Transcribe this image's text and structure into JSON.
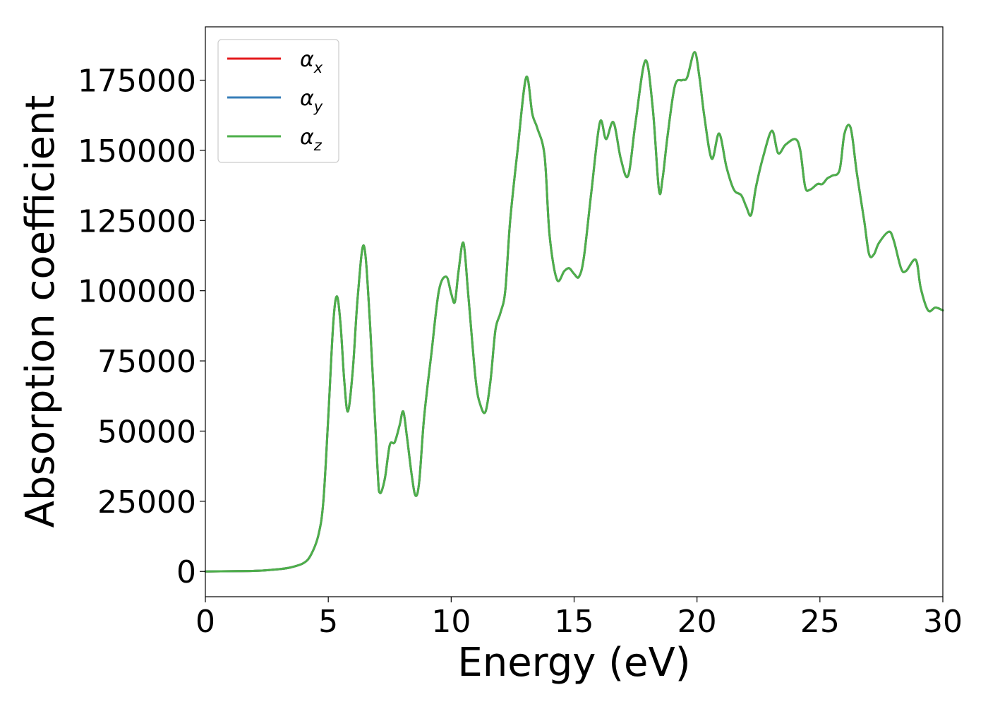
{
  "chart_data": {
    "type": "line",
    "title": "",
    "xlabel": "Energy (eV)",
    "ylabel": "Absorption coefficient",
    "xlim": [
      0,
      30
    ],
    "ylim": [
      -9000,
      194000
    ],
    "xticks": [
      0,
      5,
      10,
      15,
      20,
      25,
      30
    ],
    "yticks": [
      0,
      25000,
      50000,
      75000,
      100000,
      125000,
      150000,
      175000
    ],
    "grid": false,
    "legend_position": "top-left",
    "series": [
      {
        "name": "α_x",
        "label_main": "α",
        "label_sub": "x",
        "color": "#e41a1c",
        "x": [
          0,
          1,
          2,
          3,
          3.5,
          4,
          4.3,
          4.6,
          4.8,
          5.0,
          5.2,
          5.35,
          5.5,
          5.65,
          5.8,
          6.0,
          6.2,
          6.45,
          6.7,
          7.0,
          7.1,
          7.3,
          7.5,
          7.7,
          7.9,
          8.05,
          8.2,
          8.4,
          8.55,
          8.7,
          8.9,
          9.2,
          9.5,
          9.8,
          10.0,
          10.15,
          10.3,
          10.5,
          10.7,
          11.0,
          11.2,
          11.4,
          11.6,
          11.8,
          12.0,
          12.2,
          12.4,
          12.7,
          13.05,
          13.3,
          13.5,
          13.8,
          14.0,
          14.3,
          14.6,
          14.8,
          15.0,
          15.2,
          15.4,
          15.7,
          16.05,
          16.3,
          16.6,
          16.9,
          17.2,
          17.5,
          17.9,
          18.2,
          18.45,
          18.6,
          18.8,
          19.1,
          19.4,
          19.6,
          19.9,
          20.1,
          20.3,
          20.6,
          20.9,
          21.2,
          21.5,
          21.8,
          22.0,
          22.2,
          22.4,
          22.7,
          23.05,
          23.3,
          23.6,
          24.0,
          24.2,
          24.4,
          24.6,
          24.9,
          25.1,
          25.3,
          25.5,
          25.8,
          26.0,
          26.25,
          26.5,
          26.8,
          27.0,
          27.2,
          27.4,
          27.8,
          28.0,
          28.3,
          28.5,
          28.9,
          29.1,
          29.4,
          29.7,
          30.0
        ],
        "y": [
          0,
          100,
          200,
          800,
          1500,
          3000,
          6000,
          13000,
          25000,
          55000,
          88000,
          98000,
          88000,
          68000,
          57000,
          72000,
          98000,
          116000,
          88000,
          37000,
          28000,
          33000,
          45000,
          46000,
          52000,
          57000,
          48000,
          34000,
          27000,
          32000,
          55000,
          78000,
          100000,
          105000,
          99000,
          96000,
          107000,
          117000,
          98000,
          68000,
          59000,
          57000,
          68000,
          86000,
          92000,
          100000,
          125000,
          150000,
          176000,
          163000,
          158000,
          148000,
          120000,
          104000,
          107000,
          108000,
          106000,
          105000,
          112000,
          135000,
          160000,
          154000,
          160000,
          147000,
          141000,
          160000,
          182000,
          165000,
          136000,
          140000,
          155000,
          173000,
          175000,
          176000,
          185000,
          176000,
          162000,
          147000,
          156000,
          144000,
          136000,
          134000,
          130000,
          127000,
          137000,
          148000,
          157000,
          149000,
          152000,
          154000,
          150000,
          137000,
          136000,
          138000,
          138000,
          140000,
          141000,
          143000,
          156000,
          158000,
          142000,
          125000,
          113000,
          113000,
          117000,
          121000,
          118000,
          108000,
          107000,
          111000,
          101000,
          93000,
          94000,
          93000
        ]
      },
      {
        "name": "α_y",
        "label_main": "α",
        "label_sub": "y",
        "color": "#377eb8",
        "x": [
          0,
          1,
          2,
          3,
          3.5,
          4,
          4.3,
          4.6,
          4.8,
          5.0,
          5.2,
          5.35,
          5.5,
          5.65,
          5.8,
          6.0,
          6.2,
          6.45,
          6.7,
          7.0,
          7.1,
          7.3,
          7.5,
          7.7,
          7.9,
          8.05,
          8.2,
          8.4,
          8.55,
          8.7,
          8.9,
          9.2,
          9.5,
          9.8,
          10.0,
          10.15,
          10.3,
          10.5,
          10.7,
          11.0,
          11.2,
          11.4,
          11.6,
          11.8,
          12.0,
          12.2,
          12.4,
          12.7,
          13.05,
          13.3,
          13.5,
          13.8,
          14.0,
          14.3,
          14.6,
          14.8,
          15.0,
          15.2,
          15.4,
          15.7,
          16.05,
          16.3,
          16.6,
          16.9,
          17.2,
          17.5,
          17.9,
          18.2,
          18.45,
          18.6,
          18.8,
          19.1,
          19.4,
          19.6,
          19.9,
          20.1,
          20.3,
          20.6,
          20.9,
          21.2,
          21.5,
          21.8,
          22.0,
          22.2,
          22.4,
          22.7,
          23.05,
          23.3,
          23.6,
          24.0,
          24.2,
          24.4,
          24.6,
          24.9,
          25.1,
          25.3,
          25.5,
          25.8,
          26.0,
          26.25,
          26.5,
          26.8,
          27.0,
          27.2,
          27.4,
          27.8,
          28.0,
          28.3,
          28.5,
          28.9,
          29.1,
          29.4,
          29.7,
          30.0
        ],
        "y": [
          0,
          100,
          200,
          800,
          1500,
          3000,
          6000,
          13000,
          25000,
          55000,
          88000,
          98000,
          88000,
          68000,
          57000,
          72000,
          98000,
          116000,
          88000,
          37000,
          28000,
          33000,
          45000,
          46000,
          52000,
          57000,
          48000,
          34000,
          27000,
          32000,
          55000,
          78000,
          100000,
          105000,
          99000,
          96000,
          107000,
          117000,
          98000,
          68000,
          59000,
          57000,
          68000,
          86000,
          92000,
          100000,
          125000,
          150000,
          176000,
          163000,
          158000,
          148000,
          120000,
          104000,
          107000,
          108000,
          106000,
          105000,
          112000,
          135000,
          160000,
          154000,
          160000,
          147000,
          141000,
          160000,
          182000,
          165000,
          136000,
          140000,
          155000,
          173000,
          175000,
          176000,
          185000,
          176000,
          162000,
          147000,
          156000,
          144000,
          136000,
          134000,
          130000,
          127000,
          137000,
          148000,
          157000,
          149000,
          152000,
          154000,
          150000,
          137000,
          136000,
          138000,
          138000,
          140000,
          141000,
          143000,
          156000,
          158000,
          142000,
          125000,
          113000,
          113000,
          117000,
          121000,
          118000,
          108000,
          107000,
          111000,
          101000,
          93000,
          94000,
          93000
        ]
      },
      {
        "name": "α_z",
        "label_main": "α",
        "label_sub": "z",
        "color": "#4daf4a",
        "x": [
          0,
          1,
          2,
          3,
          3.5,
          4,
          4.3,
          4.6,
          4.8,
          5.0,
          5.2,
          5.35,
          5.5,
          5.65,
          5.8,
          6.0,
          6.2,
          6.45,
          6.7,
          7.0,
          7.1,
          7.3,
          7.5,
          7.7,
          7.9,
          8.05,
          8.2,
          8.4,
          8.55,
          8.7,
          8.9,
          9.2,
          9.5,
          9.8,
          10.0,
          10.15,
          10.3,
          10.5,
          10.7,
          11.0,
          11.2,
          11.4,
          11.6,
          11.8,
          12.0,
          12.2,
          12.4,
          12.7,
          13.05,
          13.3,
          13.5,
          13.8,
          14.0,
          14.3,
          14.6,
          14.8,
          15.0,
          15.2,
          15.4,
          15.7,
          16.05,
          16.3,
          16.6,
          16.9,
          17.2,
          17.5,
          17.9,
          18.2,
          18.45,
          18.6,
          18.8,
          19.1,
          19.4,
          19.6,
          19.9,
          20.1,
          20.3,
          20.6,
          20.9,
          21.2,
          21.5,
          21.8,
          22.0,
          22.2,
          22.4,
          22.7,
          23.05,
          23.3,
          23.6,
          24.0,
          24.2,
          24.4,
          24.6,
          24.9,
          25.1,
          25.3,
          25.5,
          25.8,
          26.0,
          26.25,
          26.5,
          26.8,
          27.0,
          27.2,
          27.4,
          27.8,
          28.0,
          28.3,
          28.5,
          28.9,
          29.1,
          29.4,
          29.7,
          30.0
        ],
        "y": [
          0,
          100,
          200,
          800,
          1500,
          3000,
          6000,
          13000,
          25000,
          55000,
          88000,
          98000,
          88000,
          68000,
          57000,
          72000,
          98000,
          116000,
          88000,
          37000,
          28000,
          33000,
          45000,
          46000,
          52000,
          57000,
          48000,
          34000,
          27000,
          32000,
          55000,
          78000,
          100000,
          105000,
          99000,
          96000,
          107000,
          117000,
          98000,
          68000,
          59000,
          57000,
          68000,
          86000,
          92000,
          100000,
          125000,
          150000,
          176000,
          163000,
          158000,
          148000,
          120000,
          104000,
          107000,
          108000,
          106000,
          105000,
          112000,
          135000,
          160000,
          154000,
          160000,
          147000,
          141000,
          160000,
          182000,
          165000,
          136000,
          140000,
          155000,
          173000,
          175000,
          176000,
          185000,
          176000,
          162000,
          147000,
          156000,
          144000,
          136000,
          134000,
          130000,
          127000,
          137000,
          148000,
          157000,
          149000,
          152000,
          154000,
          150000,
          137000,
          136000,
          138000,
          138000,
          140000,
          141000,
          143000,
          156000,
          158000,
          142000,
          125000,
          113000,
          113000,
          117000,
          121000,
          118000,
          108000,
          107000,
          111000,
          101000,
          93000,
          94000,
          93000
        ]
      }
    ]
  }
}
